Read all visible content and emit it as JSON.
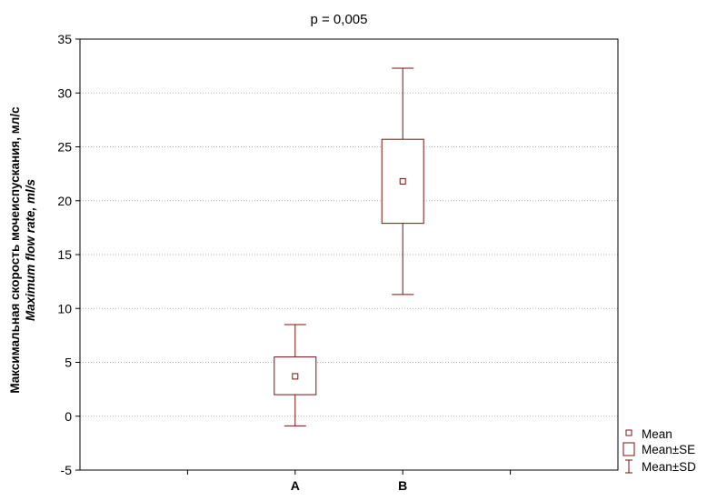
{
  "chart_data": {
    "type": "box",
    "title": "p = 0,005",
    "ylabel": "Максимальная скорость мочеиспускания, мл/с",
    "ylabel_en": "Maximum flow rate, ml/s",
    "xlabel": "",
    "ylim": [
      -5,
      35
    ],
    "yticks": [
      -5,
      0,
      5,
      10,
      15,
      20,
      25,
      30,
      35
    ],
    "ytick_labels": [
      "-5",
      "0",
      "5",
      "10",
      "15",
      "20",
      "25",
      "30",
      "35"
    ],
    "categories": [
      "A",
      "B"
    ],
    "groups": [
      {
        "category": "A",
        "mean": 3.7,
        "se_low": 2.0,
        "se_high": 5.5,
        "sd_low": -0.9,
        "sd_high": 8.5
      },
      {
        "category": "B",
        "mean": 21.8,
        "se_low": 17.9,
        "se_high": 25.7,
        "sd_low": 11.3,
        "sd_high": 32.3
      }
    ],
    "grid": true,
    "legend_position": "bottom-right",
    "legend": [
      "Mean",
      "Mean±SE",
      "Mean±SD"
    ],
    "colors": {
      "marker": "#7a1010",
      "grid": "#b0b0b0",
      "axis": "#000000"
    }
  }
}
